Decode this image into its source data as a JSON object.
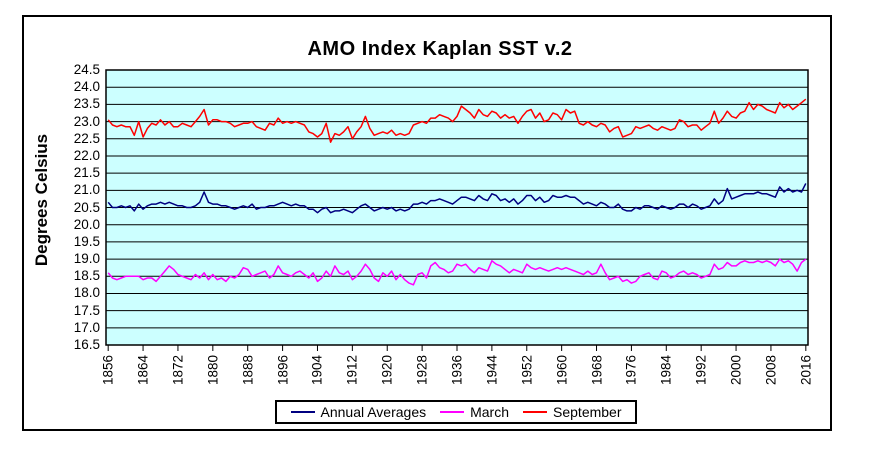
{
  "chart_data": {
    "type": "line",
    "title": "AMO Index Kaplan SST v.2",
    "ylabel": "Degrees Celsius",
    "xlabel": "",
    "ylim": [
      16.5,
      24.5
    ],
    "y_tick_step": 0.5,
    "y_tick_labels": [
      "24.5",
      "24.0",
      "23.5",
      "23.0",
      "22.5",
      "22.0",
      "21.5",
      "21.0",
      "20.5",
      "20.0",
      "19.5",
      "19.0",
      "18.5",
      "18.0",
      "17.5",
      "17.0",
      "16.5"
    ],
    "x_start_year": 1856,
    "x_end_year": 2016,
    "x_tick_interval": 8,
    "x_tick_labels": [
      "1856",
      "1864",
      "1872",
      "1880",
      "1888",
      "1896",
      "1904",
      "1912",
      "1920",
      "1928",
      "1936",
      "1944",
      "1952",
      "1960",
      "1968",
      "1976",
      "1984",
      "1992",
      "2000",
      "2008",
      "2016"
    ],
    "grid": "horizontal",
    "plot_bg_color": "#CCFFFF",
    "grid_color": "#000000",
    "legend_position": "bottom",
    "series": [
      {
        "name": "Annual Averages",
        "color": "#000080",
        "values": [
          20.65,
          20.5,
          20.5,
          20.55,
          20.5,
          20.55,
          20.4,
          20.6,
          20.45,
          20.55,
          20.6,
          20.6,
          20.65,
          20.6,
          20.65,
          20.6,
          20.55,
          20.55,
          20.5,
          20.5,
          20.55,
          20.65,
          20.95,
          20.65,
          20.6,
          20.6,
          20.55,
          20.55,
          20.5,
          20.45,
          20.5,
          20.55,
          20.5,
          20.6,
          20.45,
          20.5,
          20.5,
          20.55,
          20.55,
          20.6,
          20.65,
          20.6,
          20.55,
          20.6,
          20.55,
          20.55,
          20.45,
          20.45,
          20.35,
          20.45,
          20.5,
          20.35,
          20.4,
          20.4,
          20.45,
          20.4,
          20.35,
          20.45,
          20.55,
          20.6,
          20.5,
          20.4,
          20.45,
          20.5,
          20.45,
          20.5,
          20.4,
          20.45,
          20.4,
          20.45,
          20.6,
          20.6,
          20.65,
          20.6,
          20.7,
          20.7,
          20.75,
          20.7,
          20.65,
          20.6,
          20.7,
          20.8,
          20.8,
          20.75,
          20.7,
          20.85,
          20.75,
          20.7,
          20.9,
          20.85,
          20.7,
          20.75,
          20.65,
          20.75,
          20.6,
          20.7,
          20.85,
          20.85,
          20.7,
          20.8,
          20.65,
          20.7,
          20.85,
          20.8,
          20.8,
          20.85,
          20.8,
          20.8,
          20.7,
          20.6,
          20.65,
          20.6,
          20.55,
          20.65,
          20.6,
          20.5,
          20.5,
          20.6,
          20.45,
          20.4,
          20.4,
          20.5,
          20.45,
          20.55,
          20.55,
          20.5,
          20.45,
          20.55,
          20.5,
          20.45,
          20.5,
          20.6,
          20.6,
          20.5,
          20.6,
          20.55,
          20.45,
          20.5,
          20.55,
          20.75,
          20.6,
          20.7,
          21.05,
          20.75,
          20.8,
          20.85,
          20.9,
          20.9,
          20.9,
          20.95,
          20.9,
          20.9,
          20.85,
          20.8,
          21.1,
          20.95,
          21.05,
          20.95,
          21.0,
          20.95,
          21.2
        ]
      },
      {
        "name": "March",
        "color": "#FF00FF",
        "values": [
          18.6,
          18.45,
          18.4,
          18.45,
          18.5,
          18.5,
          18.5,
          18.5,
          18.4,
          18.45,
          18.45,
          18.35,
          18.5,
          18.65,
          18.8,
          18.7,
          18.55,
          18.5,
          18.45,
          18.4,
          18.55,
          18.45,
          18.6,
          18.4,
          18.55,
          18.4,
          18.45,
          18.35,
          18.5,
          18.45,
          18.55,
          18.75,
          18.7,
          18.5,
          18.55,
          18.6,
          18.65,
          18.45,
          18.55,
          18.8,
          18.6,
          18.55,
          18.5,
          18.6,
          18.65,
          18.55,
          18.45,
          18.6,
          18.35,
          18.45,
          18.65,
          18.5,
          18.8,
          18.6,
          18.55,
          18.65,
          18.4,
          18.5,
          18.65,
          18.85,
          18.7,
          18.45,
          18.35,
          18.6,
          18.5,
          18.65,
          18.4,
          18.55,
          18.4,
          18.3,
          18.25,
          18.55,
          18.6,
          18.45,
          18.8,
          18.9,
          18.75,
          18.7,
          18.6,
          18.65,
          18.85,
          18.8,
          18.85,
          18.7,
          18.6,
          18.75,
          18.7,
          18.65,
          18.95,
          18.85,
          18.8,
          18.7,
          18.6,
          18.7,
          18.65,
          18.6,
          18.85,
          18.75,
          18.7,
          18.75,
          18.7,
          18.65,
          18.7,
          18.75,
          18.7,
          18.75,
          18.7,
          18.65,
          18.6,
          18.55,
          18.65,
          18.55,
          18.6,
          18.85,
          18.6,
          18.4,
          18.45,
          18.5,
          18.35,
          18.4,
          18.3,
          18.35,
          18.5,
          18.55,
          18.6,
          18.45,
          18.4,
          18.65,
          18.6,
          18.45,
          18.5,
          18.6,
          18.65,
          18.55,
          18.6,
          18.55,
          18.45,
          18.5,
          18.55,
          18.85,
          18.7,
          18.75,
          18.9,
          18.8,
          18.8,
          18.9,
          18.95,
          18.9,
          18.9,
          18.95,
          18.9,
          18.95,
          18.9,
          18.8,
          19.0,
          18.9,
          18.95,
          18.85,
          18.65,
          18.9,
          19.0
        ]
      },
      {
        "name": "September",
        "color": "#FF0000",
        "values": [
          23.05,
          22.9,
          22.85,
          22.9,
          22.85,
          22.85,
          22.6,
          23.0,
          22.55,
          22.8,
          22.95,
          22.9,
          23.05,
          22.9,
          23.0,
          22.85,
          22.85,
          22.95,
          22.9,
          22.85,
          23.0,
          23.15,
          23.35,
          22.9,
          23.05,
          23.05,
          23.0,
          23.0,
          22.95,
          22.85,
          22.9,
          22.95,
          22.95,
          23.0,
          22.85,
          22.8,
          22.75,
          22.95,
          22.9,
          23.1,
          22.95,
          23.0,
          22.95,
          23.0,
          22.95,
          22.9,
          22.7,
          22.65,
          22.55,
          22.65,
          22.95,
          22.4,
          22.65,
          22.6,
          22.7,
          22.85,
          22.5,
          22.7,
          22.85,
          23.15,
          22.8,
          22.6,
          22.65,
          22.7,
          22.65,
          22.75,
          22.6,
          22.65,
          22.6,
          22.65,
          22.9,
          22.95,
          23.0,
          22.95,
          23.1,
          23.1,
          23.2,
          23.15,
          23.1,
          23.0,
          23.15,
          23.45,
          23.35,
          23.25,
          23.1,
          23.35,
          23.2,
          23.15,
          23.3,
          23.25,
          23.1,
          23.2,
          23.1,
          23.15,
          22.95,
          23.15,
          23.3,
          23.35,
          23.1,
          23.25,
          23.0,
          23.05,
          23.25,
          23.2,
          23.05,
          23.35,
          23.25,
          23.3,
          22.95,
          22.9,
          23.0,
          22.9,
          22.85,
          22.95,
          22.9,
          22.7,
          22.8,
          22.85,
          22.55,
          22.6,
          22.65,
          22.85,
          22.8,
          22.85,
          22.9,
          22.8,
          22.75,
          22.85,
          22.8,
          22.75,
          22.8,
          23.05,
          23.0,
          22.85,
          22.9,
          22.9,
          22.75,
          22.85,
          22.95,
          23.3,
          22.95,
          23.1,
          23.3,
          23.15,
          23.1,
          23.25,
          23.3,
          23.55,
          23.35,
          23.5,
          23.45,
          23.35,
          23.3,
          23.25,
          23.55,
          23.4,
          23.5,
          23.35,
          23.45,
          23.55,
          23.65
        ]
      }
    ]
  }
}
